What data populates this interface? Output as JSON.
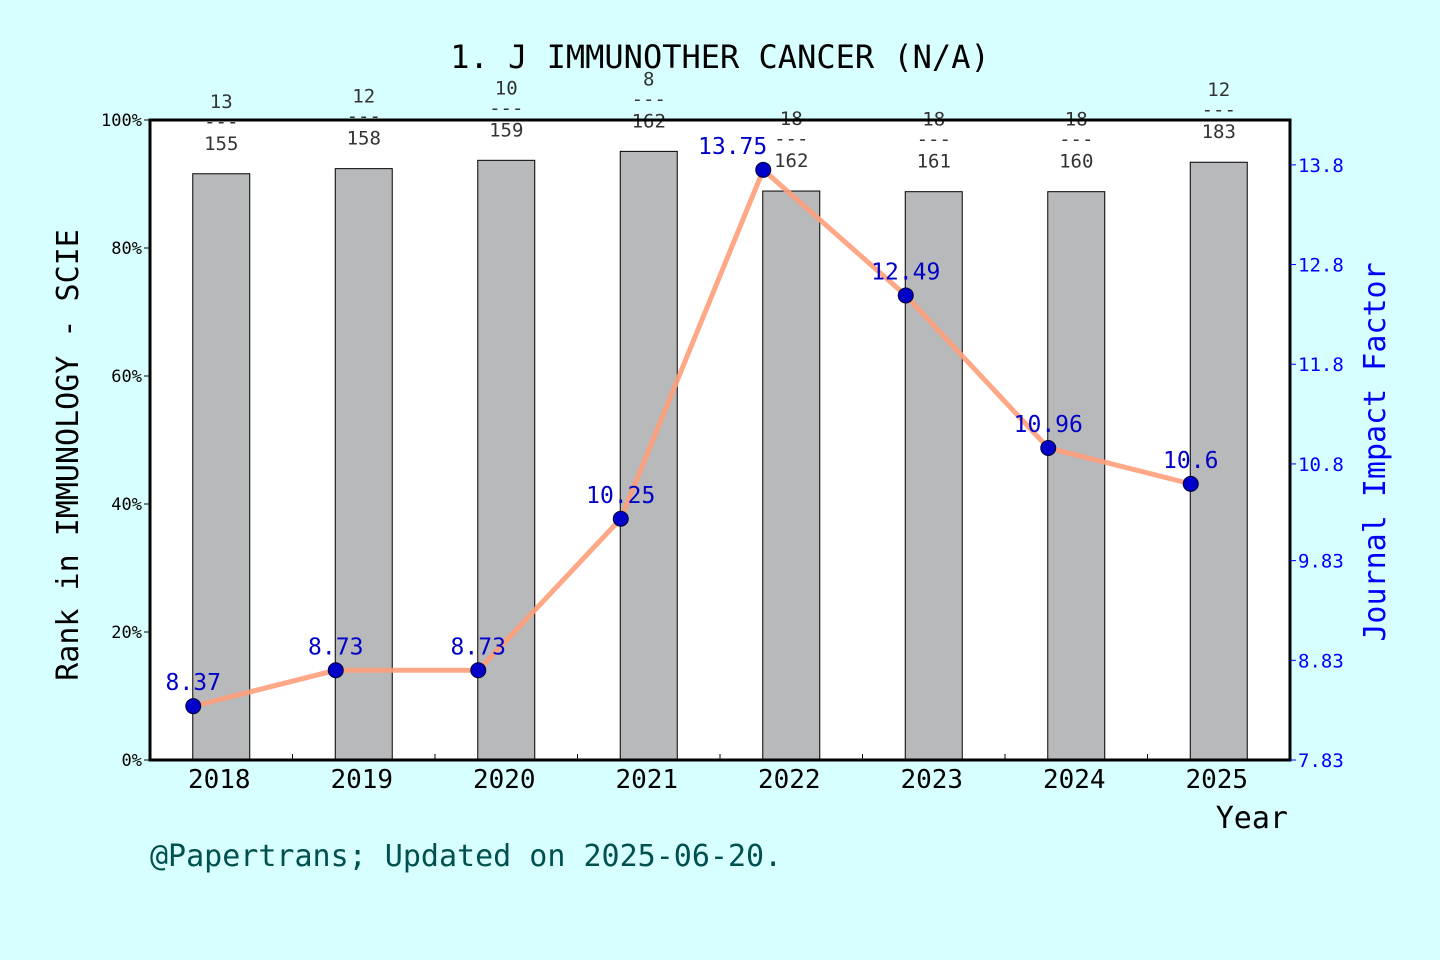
{
  "chart_data": {
    "type": "bar+line",
    "title": "1. J IMMUNOTHER CANCER (N/A)",
    "xlabel": "Year",
    "ylabel_left": "Rank in IMMUNOLOGY - SCIE",
    "ylabel_right": "Journal Impact Factor",
    "categories": [
      "2018",
      "2019",
      "2020",
      "2021",
      "2022",
      "2023",
      "2024",
      "2025"
    ],
    "left_axis": {
      "ylim": [
        0,
        100
      ],
      "ticks": [
        "0%",
        "20%",
        "40%",
        "60%",
        "80%",
        "100%"
      ]
    },
    "right_axis": {
      "ylim": [
        7.83,
        14.25
      ],
      "ticks": [
        "7.83",
        "8.83",
        "9.83",
        "10.8",
        "11.8",
        "12.8",
        "13.8"
      ]
    },
    "series": [
      {
        "kind": "bar",
        "unit": "percent",
        "values": [
          91.6,
          92.4,
          93.7,
          95.1,
          88.9,
          88.8,
          88.8,
          93.4
        ],
        "ranks": [
          "13",
          "12",
          "10",
          "8",
          "18",
          "18",
          "18",
          "12"
        ],
        "totals": [
          "155",
          "158",
          "159",
          "162",
          "162",
          "161",
          "160",
          "183"
        ],
        "separator": "---"
      },
      {
        "kind": "line",
        "axis": "right",
        "values": [
          8.37,
          8.73,
          8.73,
          10.25,
          13.75,
          12.49,
          10.96,
          10.6
        ],
        "labels": [
          "8.37",
          "8.73",
          "8.73",
          "10.25",
          "13.75",
          "12.49",
          "10.96",
          "10.6"
        ]
      }
    ],
    "grid": false,
    "colors": {
      "bar": "#b8b9bb",
      "line": "#ff9e7a",
      "marker": "#0000c8",
      "right_axis": "#0000ff",
      "footer": "#005050",
      "background": "#d8ffff"
    }
  },
  "footer": "@Papertrans; Updated on 2025-06-20."
}
